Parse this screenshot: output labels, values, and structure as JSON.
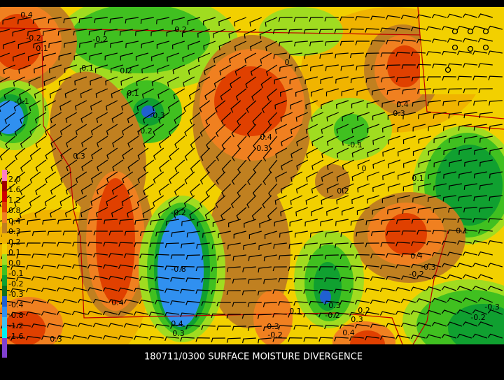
{
  "title": "180711/0300 SURFACE MOISTURE DIVERGENCE",
  "legend": {
    "labels": [
      "2.0",
      "1.6",
      "1.2",
      "0.8",
      "0.4",
      "0.3",
      "0.2",
      "0.1",
      "0.0",
      "-0.1",
      "-0.2",
      "-0.3",
      "-0.4",
      "-0.8",
      "-1.2",
      "-1.6"
    ]
  },
  "contour_labels": [
    "0.4",
    "0.1",
    "0.2",
    "-0.2",
    "0.1",
    "0.2",
    "0.1",
    "-0.3",
    "-0.2",
    "0",
    "0.4",
    "0.3",
    "0.4",
    "0.3",
    "-0.1",
    "0",
    "0.2",
    "0.1",
    "0.3",
    "-0.2",
    "-0.8",
    "0.4",
    "0.1",
    "0.4",
    "-0.3",
    "-0.2",
    "0.1",
    "0.3",
    "0.2",
    "0.3",
    "-0.2",
    "0.3",
    "-0.2",
    "0.4",
    "0.3",
    "0.4",
    "-0.3",
    "-0.2",
    "0.3",
    "-0.1",
    "-0.2"
  ]
}
